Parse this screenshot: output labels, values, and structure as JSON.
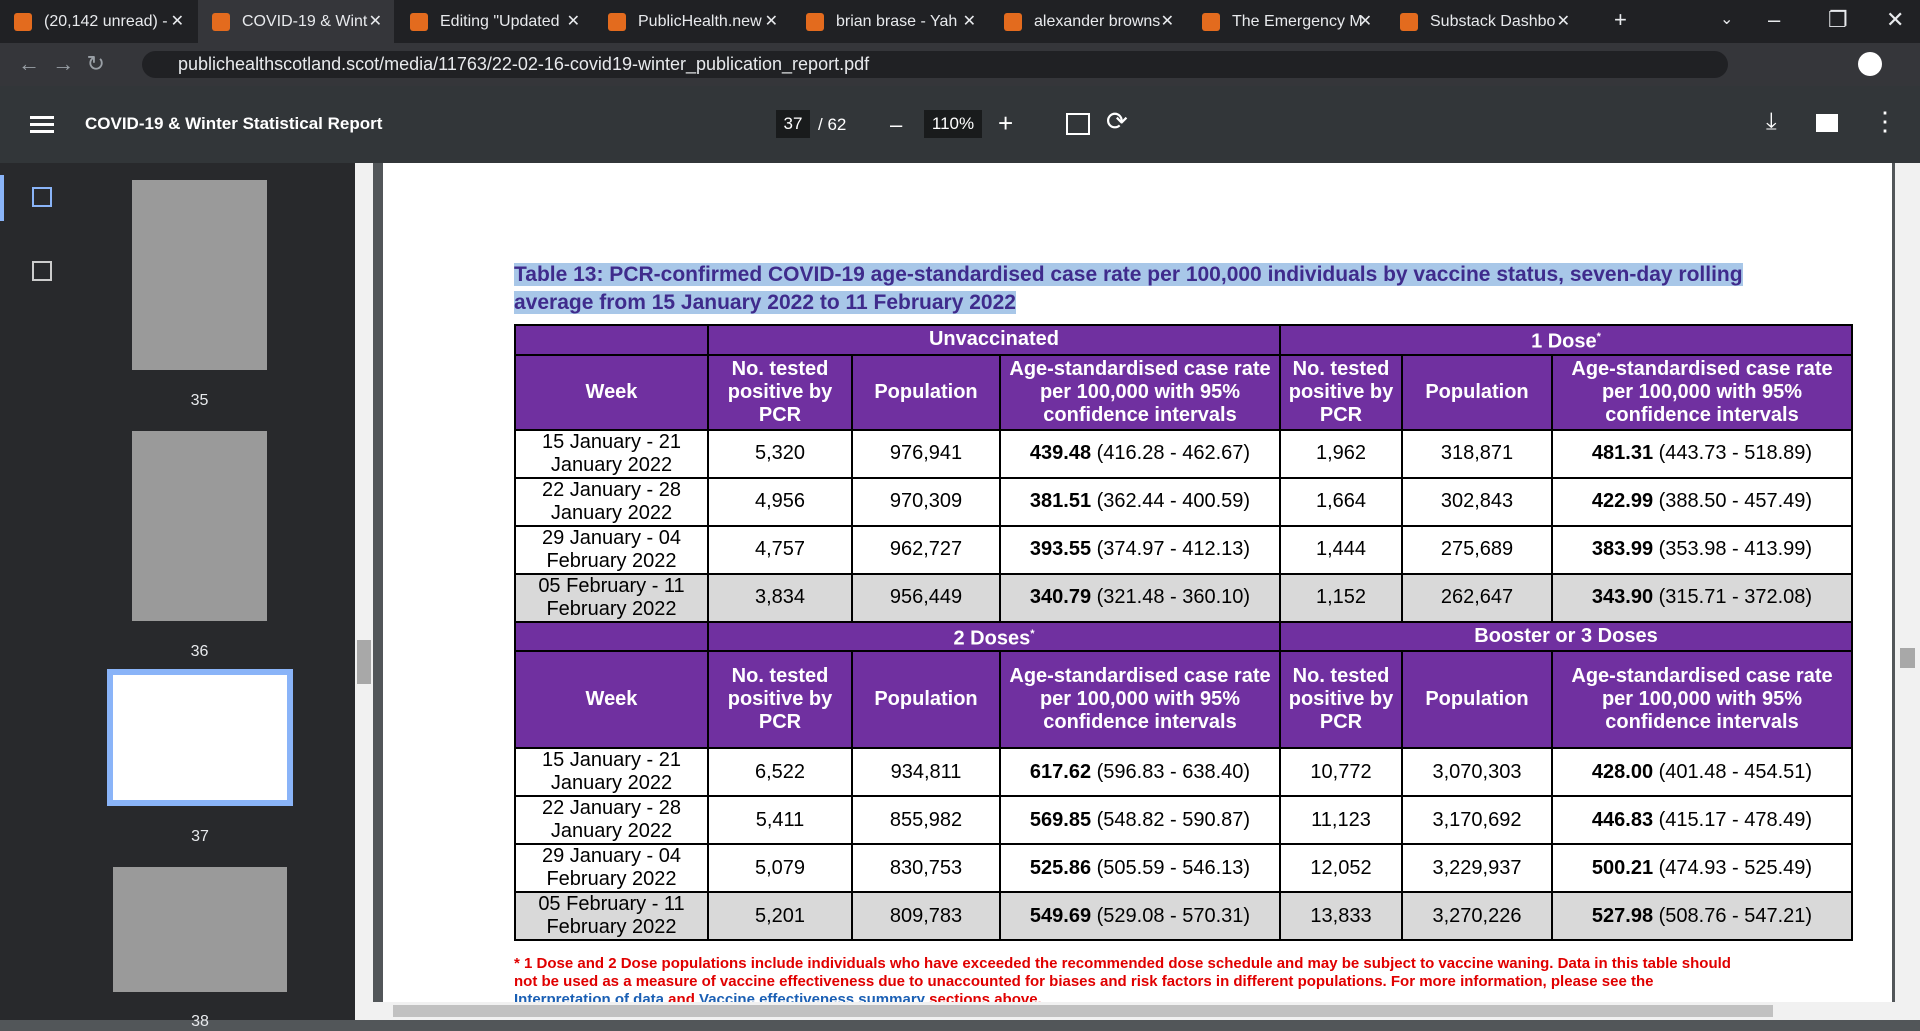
{
  "browser": {
    "tabs": [
      "(20,142 unread) -",
      "COVID-19 & Wint",
      "Editing \"Updated",
      "PublicHealth.new",
      "brian brase - Yah",
      "alexander browns",
      "The Emergency M",
      "Substack Dashbo"
    ],
    "address": "publichealthscotland.scot/media/11763/22-02-16-covid19-winter_publication_report.pdf"
  },
  "viewer": {
    "title": "COVID-19 & Winter Statistical Report",
    "page": "37",
    "page_count": "/ 62",
    "zoom": "110%"
  },
  "thumbnails": [
    "35",
    "36",
    "37",
    "38"
  ],
  "table": {
    "title": "Table 13: PCR-confirmed COVID-19 age-standardised case rate per 100,000 individuals by vaccine status, seven-day rolling average from 15 January 2022 to 11 February 2022",
    "sections": [
      {
        "groups": [
          {
            "label": "Unvaccinated"
          },
          {
            "label": "1 Dose",
            "note": "*"
          }
        ],
        "header": [
          "Week",
          "No. tested positive by PCR",
          "Population",
          "Age-standardised case rate per 100,000 with 95% confidence intervals",
          "No. tested positive by PCR",
          "Population",
          "Age-standardised case rate per 100,000 with 95% confidence intervals"
        ],
        "rows": [
          [
            "15 January - 21 January 2022",
            "5,320",
            "976,941",
            "439.48",
            "(416.28 - 462.67)",
            "1,962",
            "318,871",
            "481.31",
            "(443.73 - 518.89)"
          ],
          [
            "22 January - 28 January 2022",
            "4,956",
            "970,309",
            "381.51",
            "(362.44 - 400.59)",
            "1,664",
            "302,843",
            "422.99",
            "(388.50 - 457.49)"
          ],
          [
            "29 January - 04 February 2022",
            "4,757",
            "962,727",
            "393.55",
            "(374.97 - 412.13)",
            "1,444",
            "275,689",
            "383.99",
            "(353.98 - 413.99)"
          ],
          [
            "05 February - 11 February 2022",
            "3,834",
            "956,449",
            "340.79",
            "(321.48 - 360.10)",
            "1,152",
            "262,647",
            "343.90",
            "(315.71 - 372.08)"
          ]
        ]
      },
      {
        "groups": [
          {
            "label": "2 Doses",
            "note": "*"
          },
          {
            "label": "Booster or 3 Doses"
          }
        ],
        "header": [
          "Week",
          "No. tested positive by PCR",
          "Population",
          "Age-standardised case rate per 100,000 with 95% confidence intervals",
          "No. tested positive by PCR",
          "Population",
          "Age-standardised case rate per 100,000 with 95% confidence intervals"
        ],
        "rows": [
          [
            "15 January - 21 January 2022",
            "6,522",
            "934,811",
            "617.62",
            "(596.83 - 638.40)",
            "10,772",
            "3,070,303",
            "428.00",
            "(401.48 - 454.51)"
          ],
          [
            "22 January - 28 January 2022",
            "5,411",
            "855,982",
            "569.85",
            "(548.82 - 590.87)",
            "11,123",
            "3,170,692",
            "446.83",
            "(415.17 - 478.49)"
          ],
          [
            "29 January - 04 February 2022",
            "5,079",
            "830,753",
            "525.86",
            "(505.59 - 546.13)",
            "12,052",
            "3,229,937",
            "500.21",
            "(474.93 - 525.49)"
          ],
          [
            "05 February - 11 February 2022",
            "5,201",
            "809,783",
            "549.69",
            "(529.08 - 570.31)",
            "13,833",
            "3,270,226",
            "527.98",
            "(508.76 - 547.21)"
          ]
        ]
      }
    ]
  },
  "footnote": {
    "text": "* 1 Dose and 2 Dose populations include individuals who have exceeded the recommended dose schedule and may be subject to vaccine waning. Data in this table should not be used as a measure of vaccine effectiveness due to unaccounted for biases and risk factors in different populations. For more information, please see the ",
    "link1": "Interpretation of data",
    "mid": " and ",
    "link2": "Vaccine effectiveness summary",
    "end": " sections above."
  }
}
